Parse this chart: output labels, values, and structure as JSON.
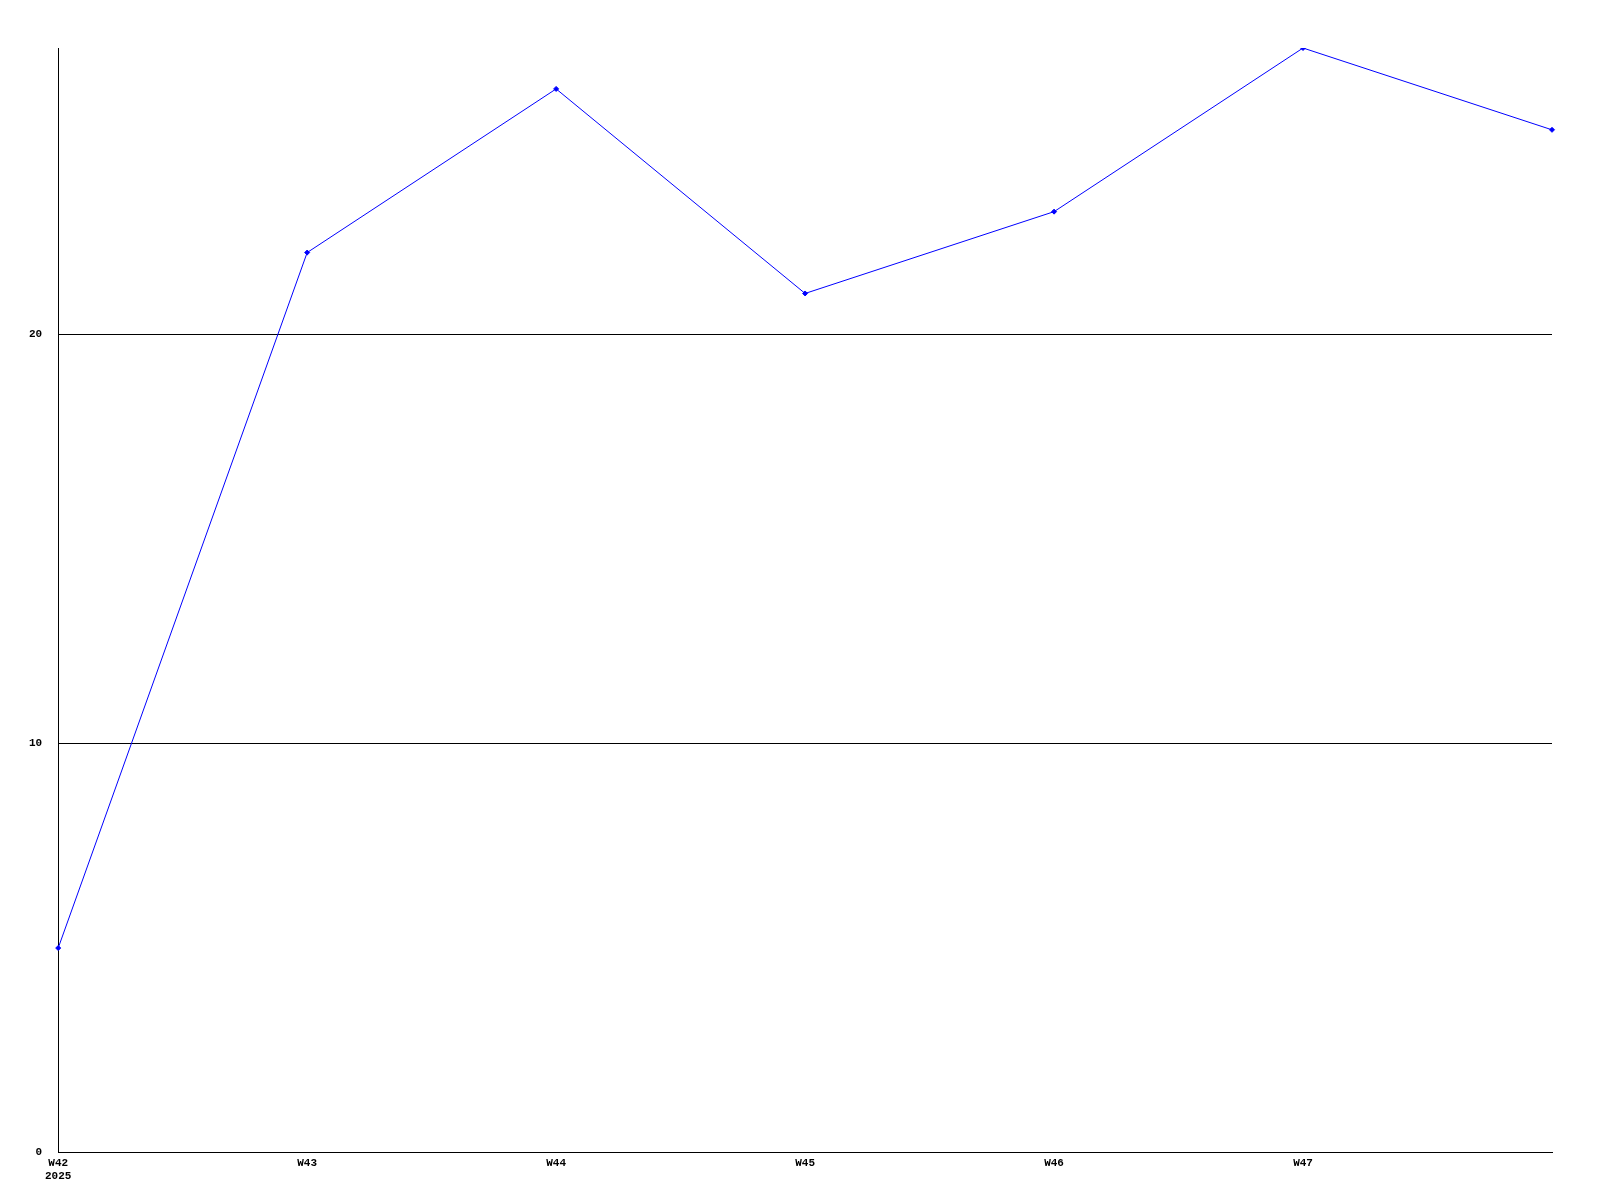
{
  "chart_data": {
    "type": "line",
    "categories": [
      "W42\n2025",
      "W43",
      "W44",
      "W45",
      "W46",
      "W47",
      null
    ],
    "series": [
      {
        "color": "#0000ff",
        "values": [
          5,
          22,
          26,
          21,
          23,
          27,
          25
        ]
      }
    ],
    "ylim": [
      0,
      27
    ],
    "yticks": [
      0,
      10,
      20
    ],
    "grid": "y",
    "legend": false,
    "marker": "diamond",
    "line_style": "solid"
  }
}
